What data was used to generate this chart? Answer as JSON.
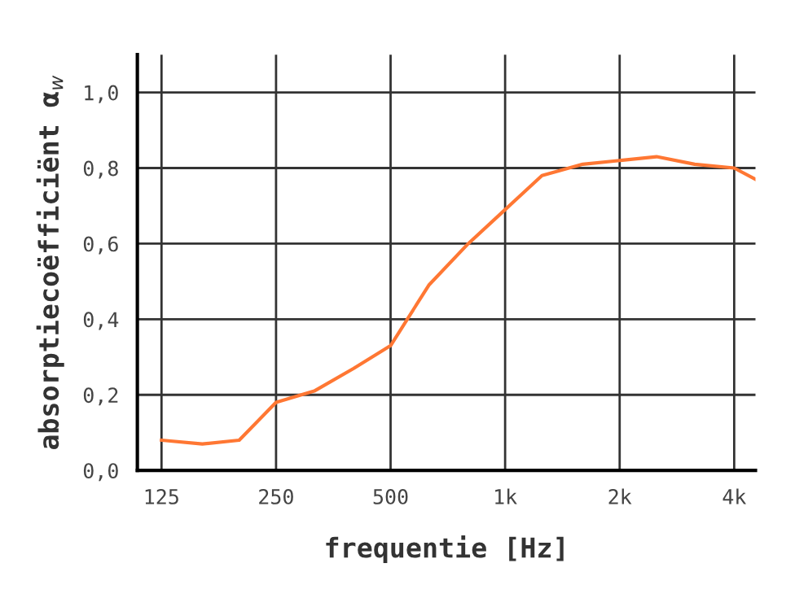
{
  "chart_data": {
    "type": "line",
    "xlabel": "frequentie [Hz]",
    "ylabel": "absorptiecoëfficiënt α$_{w}$",
    "log": "x",
    "x": [
      125,
      160,
      200,
      250,
      315,
      400,
      500,
      630,
      800,
      1000,
      1250,
      1600,
      2000,
      2500,
      3150,
      4000,
      4550
    ],
    "series": [
      {
        "color": "#ff7733",
        "values": [
          0.08,
          0.07,
          0.08,
          0.18,
          0.21,
          0.27,
          0.33,
          0.49,
          0.6,
          0.69,
          0.78,
          0.81,
          0.82,
          0.83,
          0.81,
          0.8,
          0.77
        ]
      }
    ],
    "xlim": [
      108,
      4550
    ],
    "ylim": [
      0,
      1.1
    ],
    "xticks": [
      125,
      250,
      500,
      {
        "value": 1000,
        "label": "1k"
      },
      {
        "value": 2000,
        "label": "2k"
      },
      {
        "value": 4000,
        "label": "4k"
      }
    ],
    "yticks": [
      {
        "value": 0,
        "label": "0,0"
      },
      {
        "value": 0.2,
        "label": "0,2"
      },
      {
        "value": 0.4,
        "label": "0,4"
      },
      {
        "value": 0.6,
        "label": "0,6"
      },
      {
        "value": 0.8,
        "label": "0,8"
      },
      {
        "value": 1.0,
        "label": "1,0"
      }
    ],
    "grid": true,
    "marker": "none",
    "line_style": "solid",
    "legend": false
  }
}
